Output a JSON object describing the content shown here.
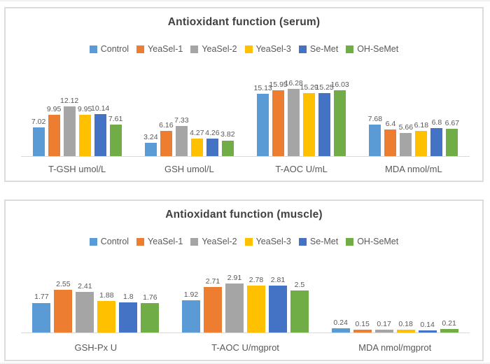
{
  "chart_data": [
    {
      "type": "bar",
      "title": "Antioxidant function (serum)",
      "legend_position": "top",
      "grid": false,
      "xlabel": "",
      "ylabel": "",
      "ylim": [
        0,
        18
      ],
      "categories": [
        "T-GSH umol/L",
        "GSH umol/L",
        "T-AOC U/mL",
        "MDA nmol/mL"
      ],
      "series": [
        {
          "name": "Control",
          "color": "#5B9BD5",
          "values": [
            7.02,
            3.24,
            15.13,
            7.68
          ]
        },
        {
          "name": "YeaSel-1",
          "color": "#ED7D31",
          "values": [
            9.95,
            6.16,
            15.95,
            6.4
          ]
        },
        {
          "name": "YeaSel-2",
          "color": "#A5A5A5",
          "values": [
            12.12,
            7.33,
            16.28,
            5.66
          ]
        },
        {
          "name": "YeaSel-3",
          "color": "#FFC000",
          "values": [
            9.95,
            4.27,
            15.29,
            6.18
          ]
        },
        {
          "name": "Se-Met",
          "color": "#4472C4",
          "values": [
            10.14,
            4.26,
            15.25,
            6.8
          ]
        },
        {
          "name": "OH-SeMet",
          "color": "#70AD47",
          "values": [
            7.61,
            3.82,
            16.03,
            6.67
          ]
        }
      ]
    },
    {
      "type": "bar",
      "title": "Antioxidant function (muscle)",
      "legend_position": "top",
      "grid": false,
      "xlabel": "",
      "ylabel": "",
      "ylim": [
        0,
        3.5
      ],
      "categories": [
        "GSH-Px U",
        "T-AOC U/mgprot",
        "MDA nmol/mgprot"
      ],
      "series": [
        {
          "name": "Control",
          "color": "#5B9BD5",
          "values": [
            1.77,
            1.92,
            0.24
          ]
        },
        {
          "name": "YeaSel-1",
          "color": "#ED7D31",
          "values": [
            2.55,
            2.71,
            0.15
          ]
        },
        {
          "name": "YeaSel-2",
          "color": "#A5A5A5",
          "values": [
            2.41,
            2.91,
            0.17
          ]
        },
        {
          "name": "YeaSel-3",
          "color": "#FFC000",
          "values": [
            1.88,
            2.78,
            0.18
          ]
        },
        {
          "name": "Se-Met",
          "color": "#4472C4",
          "values": [
            1.8,
            2.81,
            0.14
          ]
        },
        {
          "name": "OH-SeMet",
          "color": "#70AD47",
          "values": [
            1.76,
            2.5,
            0.21
          ]
        }
      ]
    }
  ]
}
